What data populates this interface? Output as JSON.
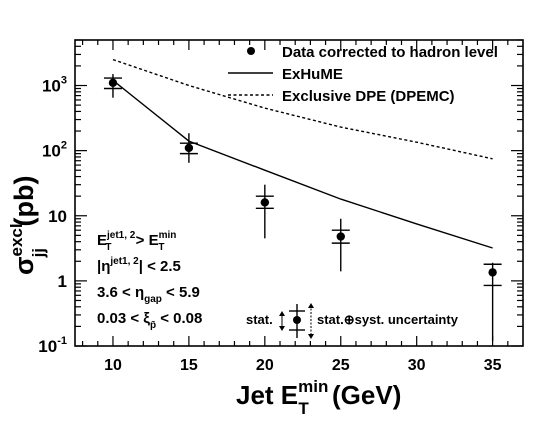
{
  "chart_data": {
    "type": "scatter",
    "xlabel": {
      "base": "Jet E",
      "sub": "T",
      "sup": "min",
      "unit": "(GeV)"
    },
    "ylabel": {
      "open": "σ",
      "sub": "jj",
      "sup": "excl",
      "unit": "(pb)"
    },
    "xlim": [
      7.5,
      37
    ],
    "ylim": [
      0.1,
      5000
    ],
    "yscale": "log",
    "x_ticks": [
      "10",
      "15",
      "20",
      "25",
      "30",
      "35"
    ],
    "y_ticks": [
      {
        "base": "10",
        "exp": "-1",
        "value": 0.1
      },
      {
        "base": "1",
        "exp": "",
        "value": 1
      },
      {
        "base": "10",
        "exp": "",
        "value": 10
      },
      {
        "base": "10",
        "exp": "2",
        "value": 100
      },
      {
        "base": "10",
        "exp": "3",
        "value": 1000
      }
    ],
    "grid": false,
    "legend_position": "top-right",
    "series": [
      {
        "name": "Data corrected to hadron level",
        "kind": "points",
        "x": [
          10,
          15,
          20,
          25,
          35
        ],
        "y": [
          1100,
          110,
          16,
          4.8,
          1.35
        ],
        "stat_low": [
          900,
          90,
          13,
          3.8,
          0.85
        ],
        "stat_high": [
          1300,
          130,
          20,
          6.0,
          1.8
        ],
        "syst_low": [
          650,
          65,
          4.5,
          1.4,
          0.12
        ],
        "syst_high": [
          1500,
          185,
          30,
          9.0,
          1.9
        ]
      },
      {
        "name": "ExHuME",
        "kind": "line",
        "style": "solid",
        "x": [
          10,
          15,
          20,
          25,
          30,
          35
        ],
        "y": [
          1200,
          140,
          50,
          18,
          7.5,
          3.2
        ]
      },
      {
        "name": "Exclusive DPE (DPEMC)",
        "kind": "line",
        "style": "dashed",
        "x": [
          10,
          15,
          20,
          25,
          30,
          35
        ],
        "y": [
          2500,
          1000,
          450,
          230,
          135,
          75
        ]
      }
    ],
    "cuts": [
      {
        "t1": "E",
        "t1sub": "T",
        "t1sup": "jet1, 2",
        "rel": " > ",
        "t2": "E",
        "t2sub": "T",
        "t2sup": "min"
      },
      {
        "t1": "|η",
        "t1sub": "",
        "t1sup": "jet1, 2",
        "rel": "| < 2.5",
        "t2": "",
        "t2sub": "",
        "t2sup": ""
      },
      {
        "t1": "3.6 < η",
        "t1sub": "gap",
        "t1sup": "",
        "rel": " < 5.9",
        "t2": "",
        "t2sub": "",
        "t2sup": ""
      },
      {
        "t1": "0.03 < ξ",
        "t1sub": "p̄",
        "t1sup": "",
        "rel": " < 0.08",
        "t2": "",
        "t2sub": "",
        "t2sup": ""
      }
    ],
    "uncertainty_key": {
      "stat_label": "stat.",
      "syst_label": "stat.⊕syst. uncertainty"
    }
  }
}
